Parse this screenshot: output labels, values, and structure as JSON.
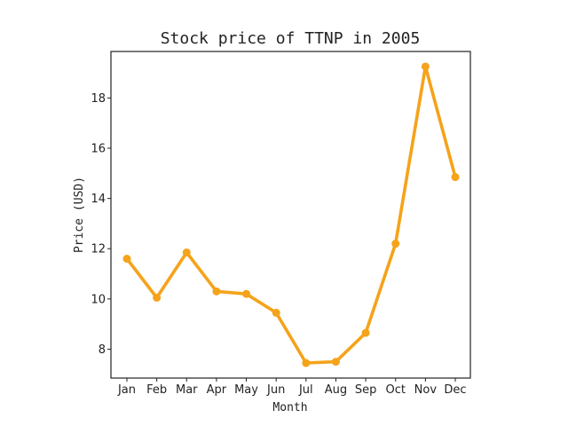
{
  "chart_data": {
    "type": "line",
    "title": "Stock price of TTNP in 2005",
    "xlabel": "Month",
    "ylabel": "Price (USD)",
    "categories": [
      "Jan",
      "Feb",
      "Mar",
      "Apr",
      "May",
      "Jun",
      "Jul",
      "Aug",
      "Sep",
      "Oct",
      "Nov",
      "Dec"
    ],
    "series": [
      {
        "values": [
          11.6,
          10.05,
          11.85,
          10.3,
          10.2,
          9.45,
          7.45,
          7.5,
          8.65,
          12.2,
          19.25,
          14.85
        ],
        "color": "#f5a31a"
      }
    ],
    "yticks": [
      8,
      10,
      12,
      14,
      16,
      18
    ],
    "ylim": [
      6.85,
      19.85
    ],
    "grid": false,
    "legend": "none"
  }
}
